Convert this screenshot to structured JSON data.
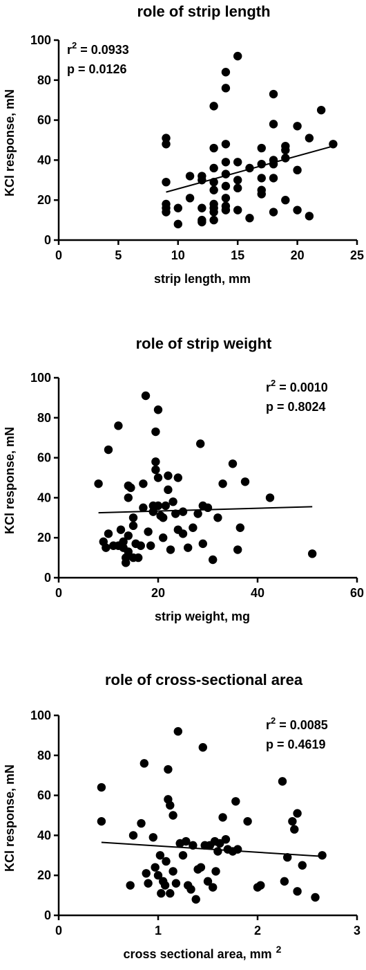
{
  "chart_data": [
    {
      "type": "scatter",
      "title": "role of strip length",
      "xlabel": "strip length, mm",
      "ylabel": "KCl response, mN",
      "xlim": [
        0,
        25
      ],
      "ylim": [
        0,
        100
      ],
      "xticks": [
        "0",
        "5",
        "10",
        "15",
        "20",
        "25"
      ],
      "yticks": [
        "0",
        "20",
        "40",
        "60",
        "80",
        "100"
      ],
      "stats": {
        "r2_prefix": "r",
        "r2_sup": "2",
        "r2_value": " = 0.0933",
        "p": "p = 0.0126"
      },
      "stats_position": "top-left",
      "points": [
        [
          9,
          51
        ],
        [
          9,
          48
        ],
        [
          9,
          29
        ],
        [
          9,
          18
        ],
        [
          9,
          16
        ],
        [
          9,
          14
        ],
        [
          10,
          16
        ],
        [
          10,
          8
        ],
        [
          11,
          32
        ],
        [
          11,
          21
        ],
        [
          12,
          32
        ],
        [
          12,
          30
        ],
        [
          12,
          16
        ],
        [
          12,
          10
        ],
        [
          12,
          9
        ],
        [
          13,
          67
        ],
        [
          13,
          46
        ],
        [
          13,
          36
        ],
        [
          13,
          29
        ],
        [
          13,
          25
        ],
        [
          13,
          18
        ],
        [
          13,
          16
        ],
        [
          13,
          14
        ],
        [
          13,
          10
        ],
        [
          14,
          84
        ],
        [
          14,
          76
        ],
        [
          14,
          48
        ],
        [
          14,
          39
        ],
        [
          14,
          33
        ],
        [
          14,
          27
        ],
        [
          14,
          21
        ],
        [
          14,
          17
        ],
        [
          14,
          15
        ],
        [
          15,
          92
        ],
        [
          15,
          39
        ],
        [
          15,
          30
        ],
        [
          15,
          26
        ],
        [
          15,
          15
        ],
        [
          16,
          36
        ],
        [
          16,
          11
        ],
        [
          17,
          46
        ],
        [
          17,
          38
        ],
        [
          17,
          31
        ],
        [
          17,
          25
        ],
        [
          17,
          23
        ],
        [
          18,
          73
        ],
        [
          18,
          58
        ],
        [
          18,
          40
        ],
        [
          18,
          38
        ],
        [
          18,
          31
        ],
        [
          18,
          14
        ],
        [
          19,
          47
        ],
        [
          19,
          45
        ],
        [
          19,
          41
        ],
        [
          19,
          20
        ],
        [
          20,
          57
        ],
        [
          20,
          35
        ],
        [
          20,
          15
        ],
        [
          21,
          51
        ],
        [
          21,
          12
        ],
        [
          22,
          65
        ],
        [
          23,
          48
        ]
      ],
      "fit": {
        "x": [
          9,
          23
        ],
        "y": [
          24,
          47
        ]
      }
    },
    {
      "type": "scatter",
      "title": "role of strip weight",
      "xlabel": "strip weight, mg",
      "ylabel": "KCl response, mN",
      "xlim": [
        0,
        60
      ],
      "ylim": [
        0,
        100
      ],
      "xticks": [
        "0",
        "20",
        "40",
        "60"
      ],
      "yticks": [
        "0",
        "20",
        "40",
        "60",
        "80",
        "100"
      ],
      "stats": {
        "r2_prefix": "r",
        "r2_sup": "2",
        "r2_value": " = 0.0010",
        "p": "p = 0.8024"
      },
      "stats_position": "top-right",
      "points": [
        [
          8,
          47
        ],
        [
          9,
          18
        ],
        [
          9.5,
          15
        ],
        [
          10,
          64
        ],
        [
          10,
          22
        ],
        [
          11,
          16
        ],
        [
          12,
          16
        ],
        [
          12,
          76
        ],
        [
          12.5,
          24
        ],
        [
          13,
          18
        ],
        [
          13,
          15
        ],
        [
          13.5,
          10
        ],
        [
          13.5,
          7.5
        ],
        [
          14,
          46
        ],
        [
          14,
          40
        ],
        [
          14,
          21
        ],
        [
          14,
          13
        ],
        [
          14.5,
          45
        ],
        [
          15,
          30
        ],
        [
          15,
          26
        ],
        [
          15,
          10
        ],
        [
          15.5,
          17
        ],
        [
          16,
          10
        ],
        [
          16.5,
          16
        ],
        [
          17,
          47
        ],
        [
          17,
          35
        ],
        [
          17.5,
          91
        ],
        [
          18,
          23
        ],
        [
          18.5,
          16
        ],
        [
          19,
          36
        ],
        [
          19,
          33
        ],
        [
          19.5,
          73
        ],
        [
          19.5,
          58
        ],
        [
          19.5,
          54
        ],
        [
          20,
          84
        ],
        [
          20,
          50
        ],
        [
          20,
          36
        ],
        [
          20.5,
          31
        ],
        [
          21,
          30
        ],
        [
          21,
          20
        ],
        [
          21.5,
          36
        ],
        [
          22,
          51
        ],
        [
          22,
          44
        ],
        [
          22.5,
          14
        ],
        [
          23,
          38
        ],
        [
          23.5,
          32
        ],
        [
          24,
          50
        ],
        [
          24,
          24
        ],
        [
          25,
          33
        ],
        [
          25,
          22
        ],
        [
          26,
          15
        ],
        [
          27,
          25
        ],
        [
          28,
          32
        ],
        [
          28.5,
          67
        ],
        [
          29,
          17
        ],
        [
          29,
          36
        ],
        [
          30,
          35
        ],
        [
          31,
          9
        ],
        [
          32,
          30
        ],
        [
          33,
          47
        ],
        [
          35,
          57
        ],
        [
          36,
          14
        ],
        [
          36.5,
          25
        ],
        [
          37.5,
          48
        ],
        [
          42.5,
          40
        ],
        [
          51,
          12
        ]
      ],
      "fit": {
        "x": [
          8,
          51
        ],
        "y": [
          32.5,
          35.5
        ]
      }
    },
    {
      "type": "scatter",
      "title": "role of cross-sectional area",
      "xlabel": "cross sectional area, mm",
      "xlabel_sup": "2",
      "ylabel": "KCl response, mN",
      "xlim": [
        0,
        3
      ],
      "ylim": [
        0,
        100
      ],
      "xticks": [
        "0",
        "1",
        "2",
        "3"
      ],
      "yticks": [
        "0",
        "20",
        "40",
        "60",
        "80",
        "100"
      ],
      "stats": {
        "r2_prefix": "r",
        "r2_sup": "2",
        "r2_value": " = 0.0085",
        "p": "p = 0.4619"
      },
      "stats_position": "top-right",
      "points": [
        [
          0.43,
          64
        ],
        [
          0.43,
          47
        ],
        [
          0.72,
          15
        ],
        [
          0.75,
          40
        ],
        [
          0.83,
          46
        ],
        [
          0.86,
          76
        ],
        [
          0.88,
          21
        ],
        [
          0.9,
          16
        ],
        [
          0.95,
          39
        ],
        [
          0.97,
          24
        ],
        [
          1.0,
          20
        ],
        [
          1.02,
          30
        ],
        [
          1.03,
          11
        ],
        [
          1.05,
          17
        ],
        [
          1.07,
          15
        ],
        [
          1.08,
          27
        ],
        [
          1.1,
          58
        ],
        [
          1.1,
          73
        ],
        [
          1.12,
          55
        ],
        [
          1.12,
          11
        ],
        [
          1.15,
          50
        ],
        [
          1.15,
          22
        ],
        [
          1.18,
          16
        ],
        [
          1.2,
          92
        ],
        [
          1.22,
          36
        ],
        [
          1.25,
          30
        ],
        [
          1.28,
          37
        ],
        [
          1.3,
          15
        ],
        [
          1.33,
          13
        ],
        [
          1.35,
          35
        ],
        [
          1.38,
          8
        ],
        [
          1.4,
          23
        ],
        [
          1.43,
          24
        ],
        [
          1.45,
          84
        ],
        [
          1.47,
          35
        ],
        [
          1.5,
          17
        ],
        [
          1.52,
          35
        ],
        [
          1.55,
          14
        ],
        [
          1.57,
          37
        ],
        [
          1.58,
          22
        ],
        [
          1.6,
          32
        ],
        [
          1.62,
          36
        ],
        [
          1.65,
          49
        ],
        [
          1.68,
          38
        ],
        [
          1.7,
          33
        ],
        [
          1.75,
          32
        ],
        [
          1.78,
          57
        ],
        [
          1.8,
          33
        ],
        [
          1.9,
          47
        ],
        [
          2.0,
          14
        ],
        [
          2.03,
          15
        ],
        [
          2.25,
          67
        ],
        [
          2.27,
          17
        ],
        [
          2.3,
          29
        ],
        [
          2.35,
          47
        ],
        [
          2.37,
          43
        ],
        [
          2.4,
          51
        ],
        [
          2.4,
          12
        ],
        [
          2.45,
          25
        ],
        [
          2.58,
          9
        ],
        [
          2.65,
          30
        ]
      ],
      "fit": {
        "x": [
          0.43,
          2.65
        ],
        "y": [
          36.5,
          29.5
        ]
      }
    }
  ]
}
